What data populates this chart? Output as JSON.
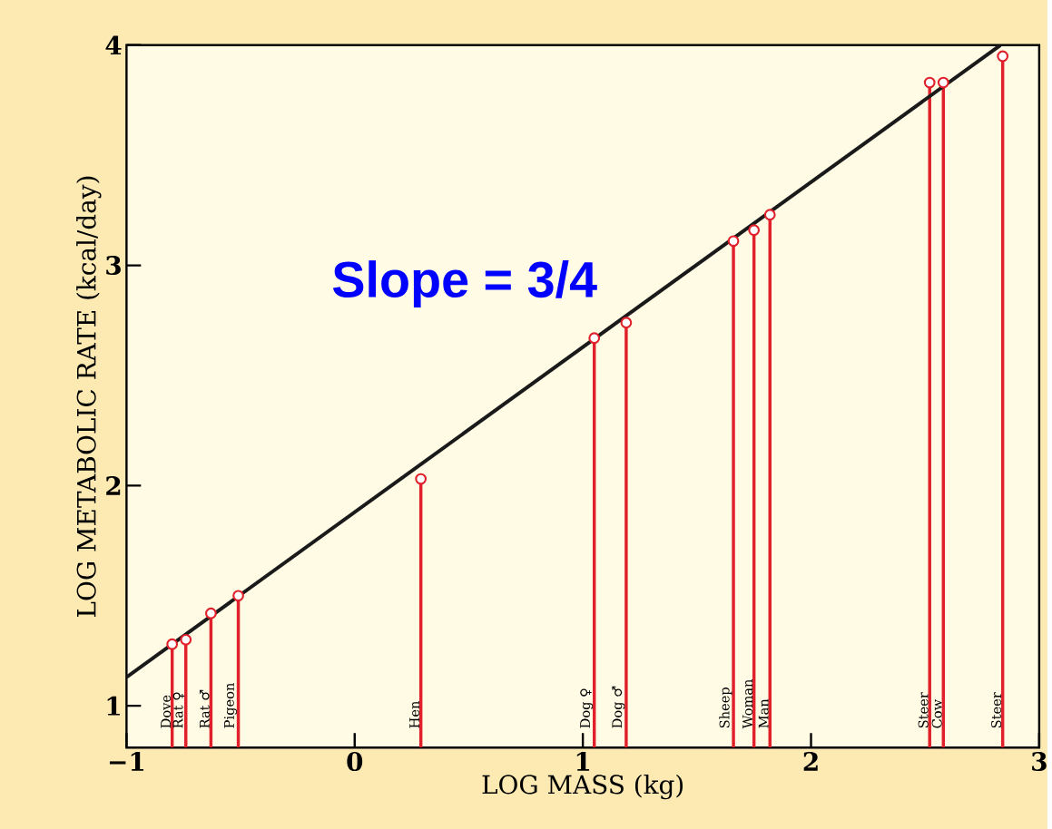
{
  "chart_data": {
    "type": "lollipop",
    "xlabel": "LOG MASS (kg)",
    "ylabel": "LOG METABOLIC RATE (kcal/day)",
    "xlim": [
      -1,
      3
    ],
    "ylim": [
      0.81,
      4
    ],
    "xticks": [
      {
        "value": -1,
        "label": "−1"
      },
      0,
      1,
      2,
      3
    ],
    "yticks": [
      1,
      2,
      3,
      4
    ],
    "grid": false,
    "series": [
      {
        "color": "#e0202a",
        "marker": "circle",
        "x": [
          -0.8,
          -0.74,
          -0.63,
          -0.51,
          0.29,
          1.05,
          1.19,
          1.66,
          1.75,
          1.82,
          2.52,
          2.58,
          2.84
        ],
        "values": [
          1.28,
          1.3,
          1.42,
          1.5,
          2.03,
          2.67,
          2.74,
          3.11,
          3.16,
          3.23,
          3.83,
          3.83,
          3.95
        ]
      },
      {
        "type": "line",
        "color": "#1a1a1a",
        "x": [
          -1,
          2.83
        ],
        "values": [
          1.13,
          4
        ]
      }
    ],
    "annotations": [
      "Slope = 3/4",
      "Dove",
      "Rat ♀",
      "Rat ♂",
      "Pigeon",
      "Hen",
      "Dog ♀",
      "Dog ♂",
      "Sheep",
      "Woman",
      "Man",
      "Steer",
      "Cow",
      "Steer"
    ]
  }
}
